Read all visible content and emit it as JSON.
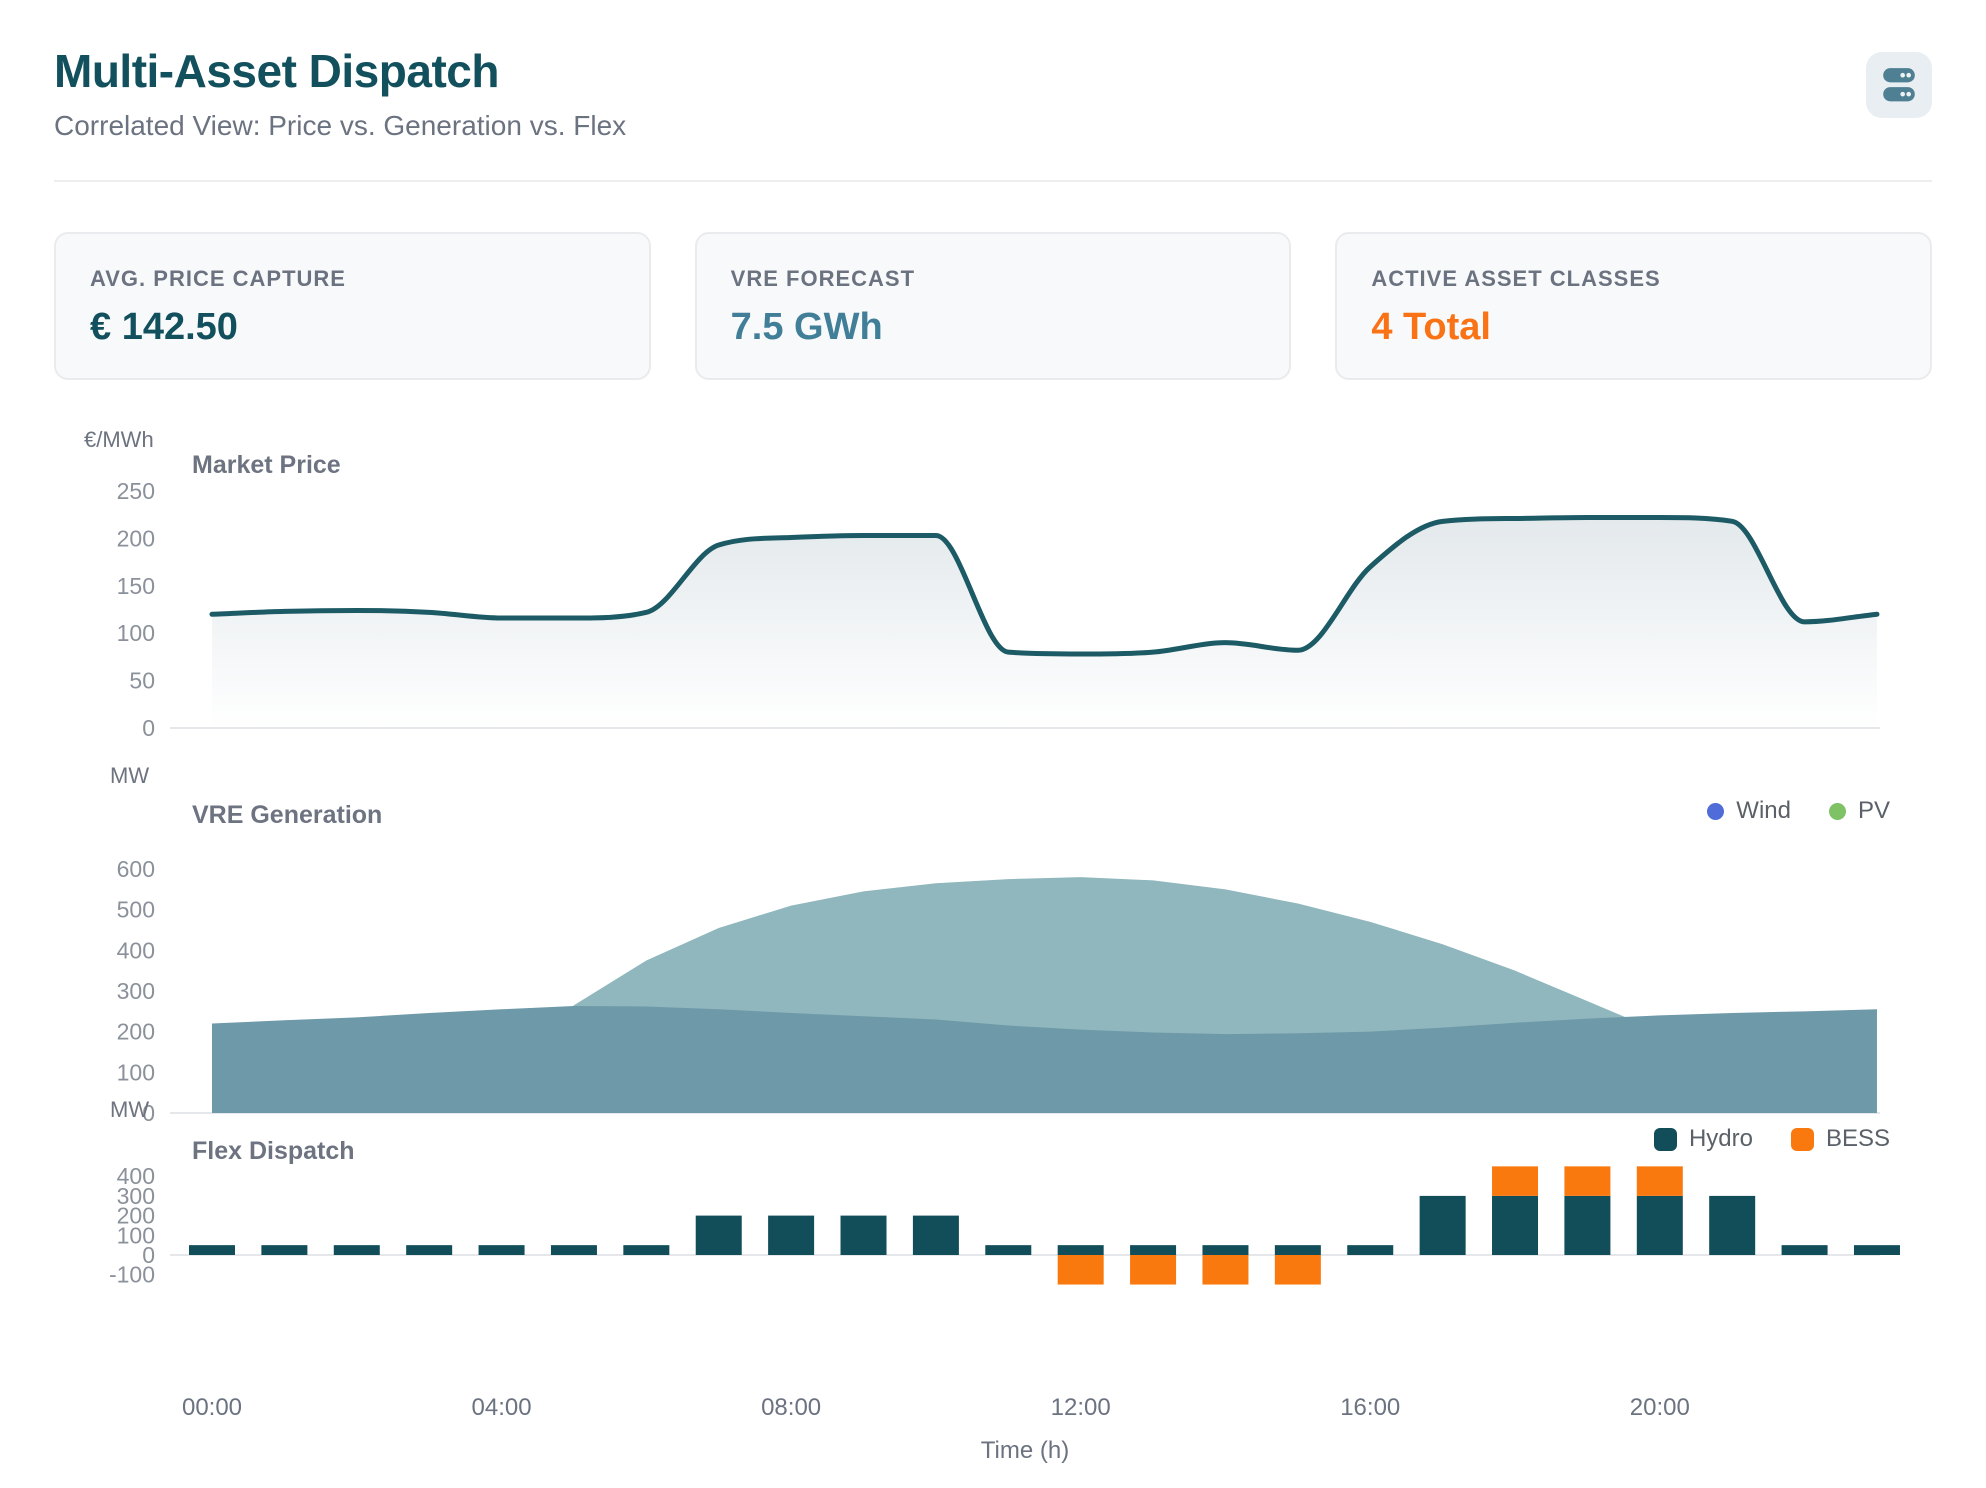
{
  "header": {
    "title": "Multi-Asset Dispatch",
    "subtitle": "Correlated View: Price vs. Generation vs. Flex"
  },
  "kpis": [
    {
      "label": "AVG. PRICE CAPTURE",
      "value": "€ 142.50",
      "color": "#11505c"
    },
    {
      "label": "VRE FORECAST",
      "value": "7.5 GWh",
      "color": "#417e98"
    },
    {
      "label": "ACTIVE ASSET CLASSES",
      "value": "4 Total",
      "color": "#f97316"
    }
  ],
  "xaxis": {
    "tick_hours": [
      0,
      4,
      8,
      12,
      16,
      20
    ],
    "ticks": [
      "00:00",
      "04:00",
      "08:00",
      "12:00",
      "16:00",
      "20:00"
    ],
    "label": "Time (h)"
  },
  "chart_data": [
    {
      "id": "price",
      "type": "area",
      "title": "Market Price",
      "unit": "€/MWh",
      "ylim": [
        0,
        250
      ],
      "yticks": [
        0,
        50,
        100,
        150,
        200,
        250
      ],
      "x_hours": [
        0,
        1,
        2,
        3,
        4,
        5,
        6,
        7,
        8,
        9,
        10,
        11,
        12,
        13,
        14,
        15,
        16,
        17,
        18,
        19,
        20,
        21,
        22,
        23
      ],
      "values": [
        120,
        123,
        124,
        122,
        116,
        116,
        122,
        193,
        201,
        203,
        203,
        80,
        78,
        80,
        90,
        82,
        170,
        218,
        221,
        222,
        222,
        218,
        112,
        120
      ],
      "line_color": "#1c5a66",
      "fill_color_top": "rgba(116,143,160,0.20)",
      "fill_color_bottom": "rgba(116,143,160,0)",
      "grid": "zero-line-only",
      "legend_position": "none"
    },
    {
      "id": "vre",
      "type": "area",
      "title": "VRE Generation",
      "unit": "MW",
      "ylim": [
        0,
        600
      ],
      "yticks": [
        0,
        100,
        200,
        300,
        400,
        500,
        600
      ],
      "x_hours": [
        0,
        1,
        2,
        3,
        4,
        5,
        6,
        7,
        8,
        9,
        10,
        11,
        12,
        13,
        14,
        15,
        16,
        17,
        18,
        19,
        20,
        21,
        22,
        23
      ],
      "series": [
        {
          "name": "Wind",
          "legend_color": "#4f6cd9",
          "area_color": "#6e99a9",
          "values": [
            220,
            228,
            235,
            246,
            255,
            263,
            262,
            255,
            246,
            238,
            230,
            215,
            205,
            198,
            194,
            196,
            200,
            210,
            222,
            232,
            240,
            246,
            250,
            255
          ]
        },
        {
          "name": "PV",
          "legend_color": "#7fc165",
          "area_color": "#8fb7bd",
          "values": [
            0,
            0,
            0,
            20,
            120,
            265,
            375,
            455,
            510,
            545,
            565,
            575,
            580,
            572,
            550,
            515,
            470,
            415,
            350,
            275,
            200,
            120,
            40,
            0
          ]
        }
      ],
      "overlap": true,
      "grid": "zero-line-only",
      "legend_position": "top-right"
    },
    {
      "id": "flex",
      "type": "bar",
      "title": "Flex Dispatch",
      "unit": "MW",
      "ylim": [
        -150,
        450
      ],
      "yticks": [
        -100,
        0,
        100,
        200,
        300,
        400
      ],
      "x_hours": [
        0,
        1,
        2,
        3,
        4,
        5,
        6,
        7,
        8,
        9,
        10,
        11,
        12,
        13,
        14,
        15,
        16,
        17,
        18,
        19,
        20,
        21,
        22,
        23
      ],
      "stacked": true,
      "series": [
        {
          "name": "Hydro",
          "color": "#114e59",
          "values": [
            50,
            50,
            50,
            50,
            50,
            50,
            50,
            200,
            200,
            200,
            200,
            50,
            50,
            50,
            50,
            50,
            50,
            300,
            300,
            300,
            300,
            300,
            50,
            50
          ]
        },
        {
          "name": "BESS",
          "color": "#f9790f",
          "values": [
            0,
            0,
            0,
            0,
            0,
            0,
            0,
            0,
            0,
            0,
            0,
            0,
            -150,
            -150,
            -150,
            -150,
            0,
            0,
            150,
            150,
            150,
            0,
            0,
            0
          ]
        }
      ],
      "grid": "zero-line-only",
      "legend_position": "top-right"
    }
  ]
}
